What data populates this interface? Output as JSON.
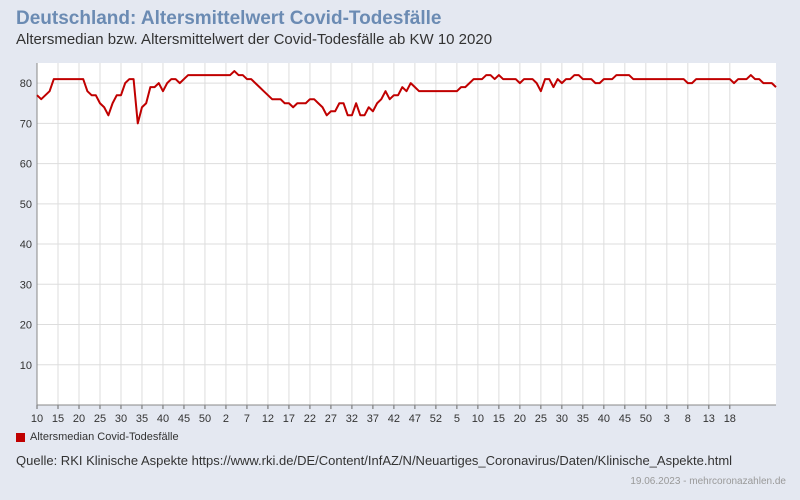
{
  "title": "Deutschland: Altersmittelwert Covid-Todesfälle",
  "subtitle": "Altersmedian bzw. Altersmittelwert der Covid-Todesfälle ab KW 10 2020",
  "source": "Quelle: RKI Klinische Aspekte https://www.rki.de/DE/Content/InfAZ/N/Neuartiges_Coronavirus/Daten/Klinische_Aspekte.html",
  "footer": "19.06.2023 - mehrcoronazahlen.de",
  "colors": {
    "line": "#c00000",
    "grid": "#dddddd",
    "plot_bg": "#ffffff",
    "page_bg": "#e4e8f1",
    "title": "#6b8bb3"
  },
  "chart_data": {
    "type": "line",
    "title": "Deutschland: Altersmittelwert Covid-Todesfälle",
    "subtitle": "Altersmedian bzw. Altersmittelwert der Covid-Todesfälle ab KW 10 2020",
    "xlabel": "",
    "ylabel": "",
    "ylim": [
      0,
      85
    ],
    "yticks": [
      10,
      20,
      30,
      40,
      50,
      60,
      70,
      80
    ],
    "grid": true,
    "legend_position": "bottom-left",
    "x_tick_labels": [
      "10",
      "15",
      "20",
      "25",
      "30",
      "35",
      "40",
      "45",
      "50",
      "2",
      "7",
      "12",
      "17",
      "22",
      "27",
      "32",
      "37",
      "42",
      "47",
      "52",
      "5",
      "10",
      "15",
      "20",
      "25",
      "30",
      "35",
      "40",
      "45",
      "50",
      "3",
      "8",
      "13",
      "18"
    ],
    "x_tick_week_index": [
      0,
      5,
      10,
      15,
      20,
      25,
      30,
      35,
      40,
      45,
      50,
      55,
      60,
      65,
      70,
      75,
      80,
      85,
      90,
      95,
      100,
      105,
      110,
      115,
      120,
      125,
      130,
      135,
      140,
      145,
      150,
      155,
      160,
      165
    ],
    "series": [
      {
        "name": "Altersmedian Covid-Todesfälle",
        "color": "#c00000",
        "values": [
          77,
          76,
          77,
          78,
          81,
          81,
          81,
          81,
          81,
          81,
          81,
          81,
          78,
          77,
          77,
          75,
          74,
          72,
          75,
          77,
          77,
          80,
          81,
          81,
          70,
          74,
          75,
          79,
          79,
          80,
          78,
          80,
          81,
          81,
          80,
          81,
          82,
          82,
          82,
          82,
          82,
          82,
          82,
          82,
          82,
          82,
          82,
          83,
          82,
          82,
          81,
          81,
          80,
          79,
          78,
          77,
          76,
          76,
          76,
          75,
          75,
          74,
          75,
          75,
          75,
          76,
          76,
          75,
          74,
          72,
          73,
          73,
          75,
          75,
          72,
          72,
          75,
          72,
          72,
          74,
          73,
          75,
          76,
          78,
          76,
          77,
          77,
          79,
          78,
          80,
          79,
          78,
          78,
          78,
          78,
          78,
          78,
          78,
          78,
          78,
          78,
          79,
          79,
          80,
          81,
          81,
          81,
          82,
          82,
          81,
          82,
          81,
          81,
          81,
          81,
          80,
          81,
          81,
          81,
          80,
          78,
          81,
          81,
          79,
          81,
          80,
          81,
          81,
          82,
          82,
          81,
          81,
          81,
          80,
          80,
          81,
          81,
          81,
          82,
          82,
          82,
          82,
          81,
          81,
          81,
          81,
          81,
          81,
          81,
          81,
          81,
          81,
          81,
          81,
          81,
          80,
          80,
          81,
          81,
          81,
          81,
          81,
          81,
          81,
          81,
          81,
          80,
          81,
          81,
          81,
          82,
          81,
          81,
          80,
          80,
          80,
          79
        ]
      }
    ]
  }
}
